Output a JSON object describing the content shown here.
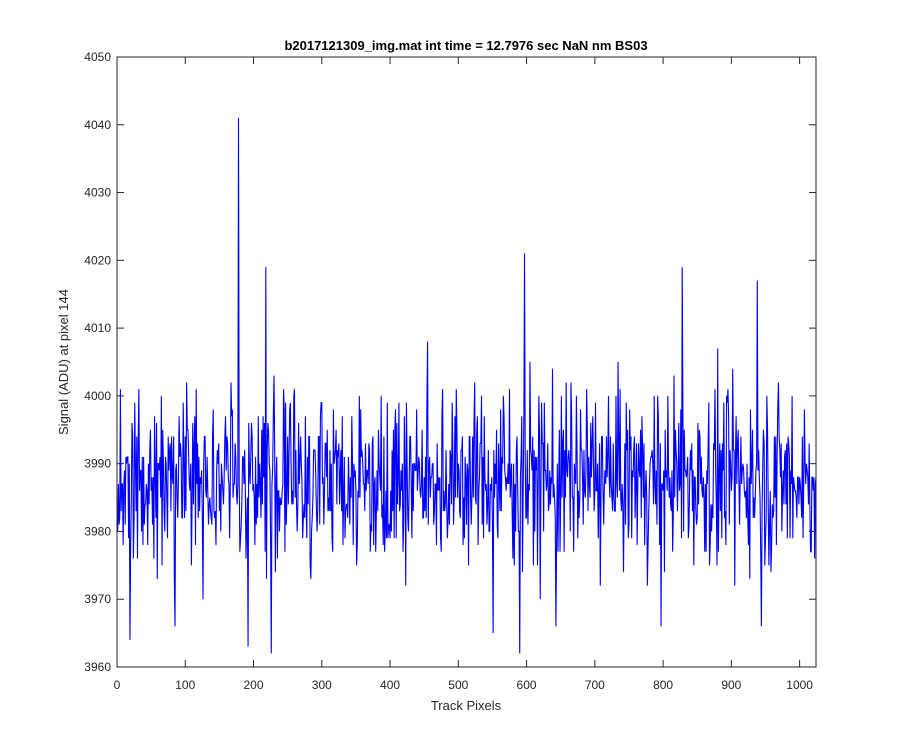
{
  "chart_data": {
    "type": "line",
    "title": "b2017121309_img.mat int time = 12.7976 sec  NaN nm BS03",
    "xlabel": "Track Pixels",
    "ylabel": "Signal (ADU) at pixel 144",
    "xlim": [
      0,
      1024
    ],
    "ylim": [
      3960,
      4050
    ],
    "xticks": [
      "0",
      "100",
      "200",
      "300",
      "400",
      "500",
      "600",
      "700",
      "800",
      "900",
      "1000"
    ],
    "yticks": [
      "3960",
      "3970",
      "3980",
      "3990",
      "4000",
      "4010",
      "4020",
      "4030",
      "4040",
      "4050"
    ],
    "grid": false,
    "series": [
      {
        "color": "#0000ff",
        "description": "Noisy signal, mean ~3988 ADU, mostly between 3972 and 4005 ADU",
        "x_range": [
          1,
          1024
        ],
        "notable_points": [
          {
            "x": 178,
            "y": 4041
          },
          {
            "x": 192,
            "y": 3963
          },
          {
            "x": 218,
            "y": 4019
          },
          {
            "x": 226,
            "y": 3962
          },
          {
            "x": 597,
            "y": 4021
          },
          {
            "x": 590,
            "y": 3962
          },
          {
            "x": 828,
            "y": 4019
          },
          {
            "x": 938,
            "y": 4017
          },
          {
            "x": 19,
            "y": 3964
          },
          {
            "x": 85,
            "y": 3966
          },
          {
            "x": 797,
            "y": 3966
          },
          {
            "x": 551,
            "y": 3965
          },
          {
            "x": 643,
            "y": 3966
          },
          {
            "x": 944,
            "y": 3966
          }
        ]
      }
    ]
  }
}
